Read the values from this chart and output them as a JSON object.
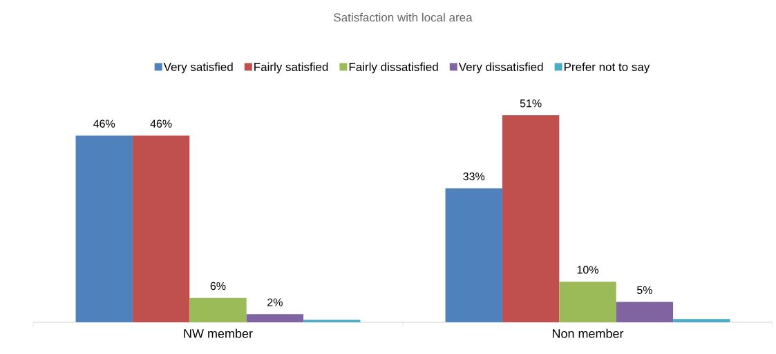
{
  "chart_data": {
    "type": "bar",
    "title": "Satisfaction with local area",
    "categories": [
      "NW member",
      "Non member"
    ],
    "legend": "top",
    "series": [
      {
        "name": "Very satisfied",
        "color": "#4f81bd",
        "values": [
          46,
          33
        ],
        "value_labels": [
          "46%",
          "33%"
        ]
      },
      {
        "name": "Fairly satisfied",
        "color": "#c0504d",
        "values": [
          46,
          51
        ],
        "value_labels": [
          "46%",
          "51%"
        ]
      },
      {
        "name": "Fairly dissatisfied",
        "color": "#9bbb59",
        "values": [
          6,
          10
        ],
        "value_labels": [
          "6%",
          "10%"
        ]
      },
      {
        "name": "Very dissatisfied",
        "color": "#8064a2",
        "values": [
          2,
          5
        ],
        "value_labels": [
          "2%",
          "5%"
        ]
      },
      {
        "name": "Prefer not to say",
        "color": "#4bacc6",
        "values": [
          0.6,
          0.8
        ],
        "value_labels": [
          null,
          null
        ]
      }
    ]
  }
}
